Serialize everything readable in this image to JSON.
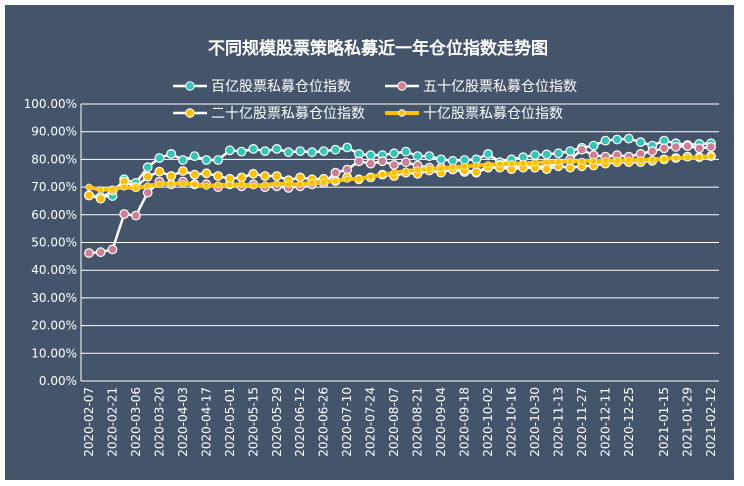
{
  "chart_data": {
    "type": "line",
    "title": "不同规模股票策略私募近一年仓位指数走势图",
    "xlabel": "",
    "ylabel": "",
    "ylim": [
      0,
      1
    ],
    "yticks": [
      "0.00%",
      "10.00%",
      "20.00%",
      "30.00%",
      "40.00%",
      "50.00%",
      "60.00%",
      "70.00%",
      "80.00%",
      "90.00%",
      "100.00%"
    ],
    "grid": true,
    "legend_position": "top",
    "x_tick_labels": [
      "2020-02-07",
      "2020-02-21",
      "2020-03-06",
      "2020-03-20",
      "2020-04-03",
      "2020-04-17",
      "2020-05-01",
      "2020-05-15",
      "2020-05-29",
      "2020-06-12",
      "2020-06-26",
      "2020-07-10",
      "2020-07-24",
      "2020-08-07",
      "2020-08-21",
      "2020-09-04",
      "2020-09-18",
      "2020-10-02",
      "2020-10-16",
      "2020-10-30",
      "2020-11-13",
      "2020-11-27",
      "2020-12-11",
      "2020-12-25",
      "2021-01-15",
      "2021-01-29",
      "2021-02-12"
    ],
    "x": [
      "2020-02-07",
      "2020-02-14",
      "2020-02-21",
      "2020-02-28",
      "2020-03-06",
      "2020-03-13",
      "2020-03-20",
      "2020-03-27",
      "2020-04-03",
      "2020-04-10",
      "2020-04-17",
      "2020-04-24",
      "2020-05-01",
      "2020-05-08",
      "2020-05-15",
      "2020-05-22",
      "2020-05-29",
      "2020-06-05",
      "2020-06-12",
      "2020-06-19",
      "2020-06-26",
      "2020-07-03",
      "2020-07-10",
      "2020-07-17",
      "2020-07-24",
      "2020-07-31",
      "2020-08-07",
      "2020-08-14",
      "2020-08-21",
      "2020-08-28",
      "2020-09-04",
      "2020-09-11",
      "2020-09-18",
      "2020-09-25",
      "2020-10-02",
      "2020-10-09",
      "2020-10-16",
      "2020-10-23",
      "2020-10-30",
      "2020-11-06",
      "2020-11-13",
      "2020-11-20",
      "2020-11-27",
      "2020-12-04",
      "2020-12-11",
      "2020-12-18",
      "2020-12-25",
      "2021-01-01",
      "2021-01-08",
      "2021-01-15",
      "2021-01-22",
      "2021-01-29",
      "2021-02-05",
      "2021-02-12"
    ],
    "series": [
      {
        "name": "百亿股票私募仓位指数",
        "line_color": "#ffffff",
        "marker_color": "#2fc6bb",
        "marker": "circle",
        "values": [
          0.67,
          0.665,
          0.668,
          0.728,
          0.715,
          0.772,
          0.805,
          0.82,
          0.798,
          0.812,
          0.798,
          0.798,
          0.833,
          0.828,
          0.838,
          0.83,
          0.838,
          0.826,
          0.83,
          0.826,
          0.83,
          0.835,
          0.843,
          0.82,
          0.815,
          0.815,
          0.822,
          0.828,
          0.812,
          0.812,
          0.8,
          0.795,
          0.798,
          0.8,
          0.82,
          0.79,
          0.8,
          0.808,
          0.816,
          0.818,
          0.822,
          0.83,
          0.842,
          0.85,
          0.868,
          0.872,
          0.875,
          0.862,
          0.85,
          0.868,
          0.858,
          0.852,
          0.856,
          0.858
        ]
      },
      {
        "name": "五十亿股票私募仓位指数",
        "line_color": "#ffffff",
        "marker_color": "#d07f93",
        "marker": "circle",
        "values": [
          0.462,
          0.465,
          0.475,
          0.603,
          0.597,
          0.68,
          0.72,
          0.71,
          0.72,
          0.71,
          0.71,
          0.7,
          0.71,
          0.703,
          0.71,
          0.7,
          0.703,
          0.697,
          0.703,
          0.71,
          0.715,
          0.752,
          0.763,
          0.793,
          0.785,
          0.793,
          0.78,
          0.79,
          0.778,
          0.77,
          0.77,
          0.763,
          0.755,
          0.752,
          0.77,
          0.78,
          0.77,
          0.778,
          0.77,
          0.778,
          0.783,
          0.8,
          0.835,
          0.815,
          0.81,
          0.815,
          0.81,
          0.82,
          0.83,
          0.84,
          0.845,
          0.848,
          0.84,
          0.845
        ]
      },
      {
        "name": "二十亿股票私募仓位指数",
        "line_color": "#ffffff",
        "marker_color": "#ffc000",
        "marker": "circle",
        "values": [
          0.67,
          0.658,
          0.688,
          0.72,
          0.7,
          0.738,
          0.756,
          0.74,
          0.758,
          0.745,
          0.75,
          0.74,
          0.73,
          0.735,
          0.748,
          0.74,
          0.74,
          0.725,
          0.735,
          0.728,
          0.73,
          0.722,
          0.735,
          0.728,
          0.735,
          0.745,
          0.74,
          0.752,
          0.748,
          0.76,
          0.752,
          0.765,
          0.76,
          0.755,
          0.772,
          0.77,
          0.765,
          0.77,
          0.77,
          0.765,
          0.775,
          0.77,
          0.775,
          0.778,
          0.785,
          0.79,
          0.79,
          0.79,
          0.795,
          0.8,
          0.805,
          0.81,
          0.808,
          0.812
        ]
      },
      {
        "name": "十亿股票私募仓位指数",
        "line_color": "#ffc000",
        "marker_color": "#ffc000",
        "marker": "circle",
        "values": [
          0.7,
          0.69,
          0.692,
          0.7,
          0.695,
          0.705,
          0.71,
          0.712,
          0.712,
          0.71,
          0.703,
          0.708,
          0.708,
          0.71,
          0.705,
          0.708,
          0.712,
          0.71,
          0.71,
          0.715,
          0.718,
          0.722,
          0.728,
          0.73,
          0.738,
          0.745,
          0.752,
          0.758,
          0.762,
          0.766,
          0.768,
          0.772,
          0.775,
          0.778,
          0.781,
          0.783,
          0.785,
          0.786,
          0.788,
          0.79,
          0.791,
          0.792,
          0.793,
          0.794,
          0.795,
          0.796,
          0.797,
          0.798,
          0.8,
          0.802,
          0.805,
          0.806,
          0.808,
          0.812
        ]
      }
    ]
  }
}
